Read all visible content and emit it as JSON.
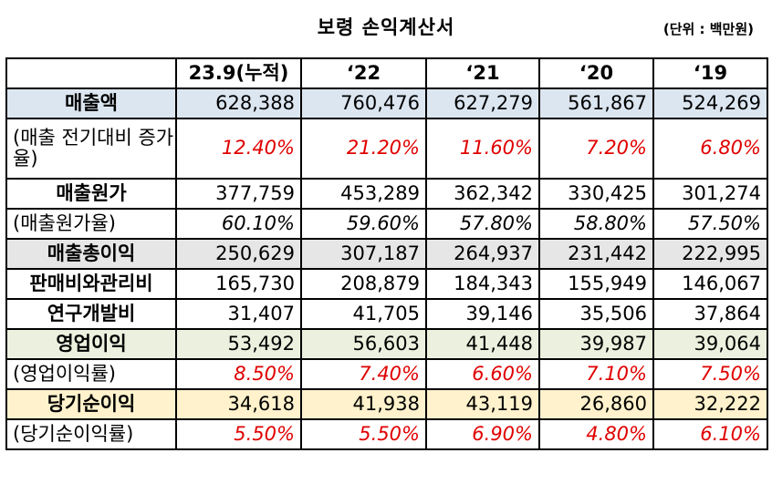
{
  "title": "보령 손익계산서",
  "unit": "(단위 : 백만원)",
  "columns": [
    "",
    "23.9(누적)",
    "‘22",
    "‘21",
    "‘20",
    "‘19"
  ],
  "rows": [
    {
      "label": "매출액",
      "bold": true,
      "italic": false,
      "red": false,
      "bg": "blue",
      "values": [
        "628,388",
        "760,476",
        "627,279",
        "561,867",
        "524,269"
      ]
    },
    {
      "label": "(매출 전기대비 증가율)",
      "bold": false,
      "italic": true,
      "red": true,
      "bg": "",
      "values": [
        "12.40%",
        "21.20%",
        "11.60%",
        "7.20%",
        "6.80%"
      ]
    },
    {
      "label": "매출원가",
      "bold": true,
      "italic": false,
      "red": false,
      "bg": "",
      "values": [
        "377,759",
        "453,289",
        "362,342",
        "330,425",
        "301,274"
      ]
    },
    {
      "label": "(매출원가율)",
      "bold": false,
      "italic": true,
      "red": false,
      "bg": "",
      "values": [
        "60.10%",
        "59.60%",
        "57.80%",
        "58.80%",
        "57.50%"
      ]
    },
    {
      "label": "매출총이익",
      "bold": true,
      "italic": false,
      "red": false,
      "bg": "gray",
      "values": [
        "250,629",
        "307,187",
        "264,937",
        "231,442",
        "222,995"
      ]
    },
    {
      "label": "판매비와관리비",
      "bold": true,
      "italic": false,
      "red": false,
      "bg": "",
      "values": [
        "165,730",
        "208,879",
        "184,343",
        "155,949",
        "146,067"
      ]
    },
    {
      "label": "연구개발비",
      "bold": true,
      "italic": false,
      "red": false,
      "bg": "",
      "values": [
        "31,407",
        "41,705",
        "39,146",
        "35,506",
        "37,864"
      ]
    },
    {
      "label": "영업이익",
      "bold": true,
      "italic": false,
      "red": false,
      "bg": "green",
      "values": [
        "53,492",
        "56,603",
        "41,448",
        "39,987",
        "39,064"
      ]
    },
    {
      "label": "(영업이익률)",
      "bold": false,
      "italic": true,
      "red": true,
      "bg": "",
      "values": [
        "8.50%",
        "7.40%",
        "6.60%",
        "7.10%",
        "7.50%"
      ]
    },
    {
      "label": "당기순이익",
      "bold": true,
      "italic": false,
      "red": false,
      "bg": "yellow",
      "values": [
        "34,618",
        "41,938",
        "43,119",
        "26,860",
        "32,222"
      ]
    },
    {
      "label": "(당기순이익률)",
      "bold": false,
      "italic": true,
      "red": true,
      "bg": "",
      "values": [
        "5.50%",
        "5.50%",
        "6.90%",
        "4.80%",
        "6.10%"
      ]
    }
  ],
  "colors": {
    "blue": "#dce6f1",
    "gray": "#e7e6e6",
    "green": "#ebf1de",
    "yellow": "#fff2cc",
    "red_text": "#e00000"
  }
}
